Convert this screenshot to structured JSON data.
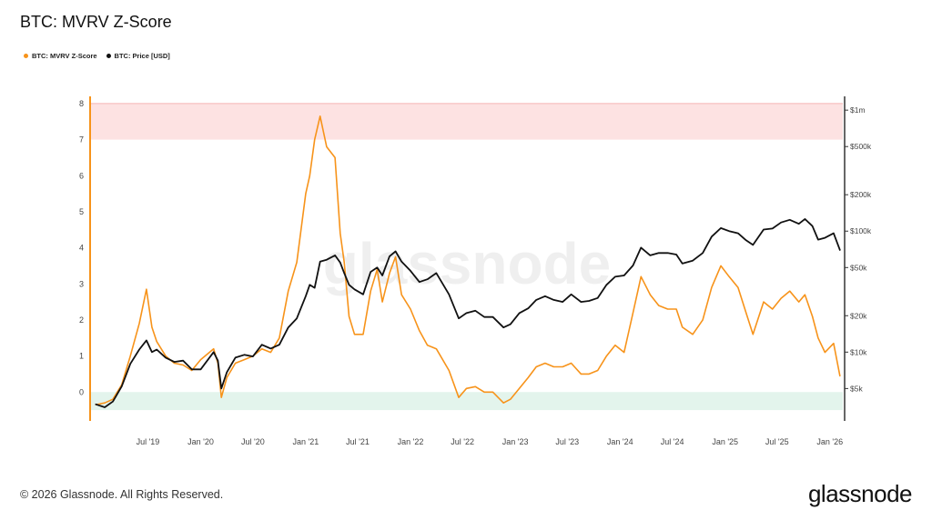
{
  "title": "BTC: MVRV Z-Score",
  "legend": [
    {
      "label": "BTC: MVRV Z-Score",
      "color": "#f7931a"
    },
    {
      "label": "BTC: Price [USD]",
      "color": "#111111"
    }
  ],
  "watermark": "glassnode",
  "footer": "© 2026 Glassnode. All Rights Reserved.",
  "brand": "glassnode",
  "colors": {
    "zscore": "#f7931a",
    "price": "#111111",
    "red_band": "#fde2e2",
    "green_band": "#e3f4ec"
  },
  "chart_data": {
    "type": "line",
    "x_axis": {
      "type": "date",
      "tick_labels": [
        "Jul '19",
        "Jan '20",
        "Jul '20",
        "Jan '21",
        "Jul '21",
        "Jan '22",
        "Jul '22",
        "Jan '23",
        "Jul '23",
        "Jan '24",
        "Jul '24",
        "Jan '25",
        "Jul '25",
        "Jan '26"
      ],
      "tick_dates": [
        "2019-07-01",
        "2020-01-01",
        "2020-07-01",
        "2021-01-01",
        "2021-07-01",
        "2022-01-01",
        "2022-07-01",
        "2023-01-01",
        "2023-07-01",
        "2024-01-01",
        "2024-07-01",
        "2025-01-01",
        "2025-07-01",
        "2026-01-01"
      ],
      "range": [
        "2018-12-15",
        "2026-02-15"
      ]
    },
    "y_left": {
      "range": [
        -0.8,
        8.2
      ],
      "tick_values": [
        0,
        1,
        2,
        3,
        4,
        5,
        6,
        7,
        8
      ],
      "tick_labels": [
        "0",
        "1",
        "2",
        "3",
        "4",
        "5",
        "6",
        "7",
        "8"
      ]
    },
    "y_right": {
      "scale": "log",
      "range": [
        2700,
        1300000
      ],
      "tick_values": [
        5000,
        10000,
        20000,
        50000,
        100000,
        200000,
        500000,
        1000000
      ],
      "tick_labels": [
        "$5k",
        "$10k",
        "$20k",
        "$50k",
        "$100k",
        "$200k",
        "$500k",
        "$1m"
      ]
    },
    "bands": [
      {
        "name": "overvalued",
        "axis": "left",
        "from": 7,
        "to": 8,
        "color": "#fde2e2"
      },
      {
        "name": "undervalued",
        "axis": "left",
        "from": -0.5,
        "to": 0,
        "color": "#e3f4ec"
      }
    ],
    "series": [
      {
        "name": "BTC: MVRV Z-Score",
        "axis": "left",
        "color": "#f7931a",
        "x": [
          "2019-01-01",
          "2019-02-01",
          "2019-03-01",
          "2019-04-01",
          "2019-05-01",
          "2019-06-01",
          "2019-06-26",
          "2019-07-15",
          "2019-08-01",
          "2019-09-01",
          "2019-10-01",
          "2019-11-01",
          "2019-12-01",
          "2020-01-01",
          "2020-02-15",
          "2020-03-01",
          "2020-03-13",
          "2020-04-01",
          "2020-05-01",
          "2020-06-01",
          "2020-07-01",
          "2020-08-01",
          "2020-09-01",
          "2020-10-01",
          "2020-11-01",
          "2020-12-01",
          "2021-01-01",
          "2021-01-15",
          "2021-02-01",
          "2021-02-20",
          "2021-03-15",
          "2021-04-13",
          "2021-05-01",
          "2021-05-15",
          "2021-06-01",
          "2021-06-20",
          "2021-07-20",
          "2021-08-15",
          "2021-09-07",
          "2021-09-25",
          "2021-10-20",
          "2021-11-10",
          "2021-12-01",
          "2022-01-01",
          "2022-02-01",
          "2022-03-01",
          "2022-04-01",
          "2022-05-15",
          "2022-06-18",
          "2022-07-15",
          "2022-08-15",
          "2022-09-15",
          "2022-10-15",
          "2022-11-21",
          "2022-12-15",
          "2023-01-15",
          "2023-02-15",
          "2023-03-15",
          "2023-04-15",
          "2023-05-15",
          "2023-06-15",
          "2023-07-15",
          "2023-08-18",
          "2023-09-15",
          "2023-10-15",
          "2023-11-15",
          "2023-12-15",
          "2024-01-15",
          "2024-02-15",
          "2024-03-14",
          "2024-04-15",
          "2024-05-15",
          "2024-06-15",
          "2024-07-15",
          "2024-08-05",
          "2024-09-10",
          "2024-10-15",
          "2024-11-15",
          "2024-12-17",
          "2025-01-15",
          "2025-02-15",
          "2025-03-15",
          "2025-04-08",
          "2025-05-15",
          "2025-06-15",
          "2025-07-15",
          "2025-08-14",
          "2025-09-15",
          "2025-10-06",
          "2025-11-01",
          "2025-11-21",
          "2025-12-15",
          "2026-01-14",
          "2026-02-05"
        ],
        "y": [
          -0.35,
          -0.3,
          -0.2,
          0.2,
          1.0,
          1.9,
          2.85,
          1.8,
          1.4,
          1.0,
          0.8,
          0.75,
          0.6,
          0.9,
          1.2,
          0.8,
          -0.15,
          0.4,
          0.8,
          0.9,
          1.0,
          1.2,
          1.1,
          1.5,
          2.8,
          3.6,
          5.5,
          6.0,
          7.0,
          7.65,
          6.8,
          6.5,
          4.4,
          3.6,
          2.1,
          1.6,
          1.6,
          2.8,
          3.4,
          2.5,
          3.3,
          3.75,
          2.7,
          2.3,
          1.7,
          1.3,
          1.2,
          0.6,
          -0.15,
          0.1,
          0.15,
          0.0,
          0.0,
          -0.3,
          -0.2,
          0.1,
          0.4,
          0.7,
          0.8,
          0.7,
          0.7,
          0.8,
          0.5,
          0.5,
          0.6,
          1.0,
          1.3,
          1.1,
          2.2,
          3.2,
          2.7,
          2.4,
          2.3,
          2.3,
          1.8,
          1.6,
          2.0,
          2.9,
          3.5,
          3.2,
          2.9,
          2.2,
          1.6,
          2.5,
          2.3,
          2.6,
          2.8,
          2.5,
          2.7,
          2.1,
          1.5,
          1.1,
          1.35,
          0.45
        ]
      },
      {
        "name": "BTC: Price [USD]",
        "axis": "right",
        "color": "#111111",
        "x": [
          "2019-01-01",
          "2019-02-01",
          "2019-03-01",
          "2019-04-01",
          "2019-05-01",
          "2019-06-01",
          "2019-06-26",
          "2019-07-15",
          "2019-08-01",
          "2019-09-01",
          "2019-10-01",
          "2019-11-01",
          "2019-12-01",
          "2020-01-01",
          "2020-02-15",
          "2020-03-01",
          "2020-03-13",
          "2020-04-01",
          "2020-05-01",
          "2020-06-01",
          "2020-07-01",
          "2020-08-01",
          "2020-09-01",
          "2020-10-01",
          "2020-11-01",
          "2020-12-01",
          "2021-01-01",
          "2021-01-15",
          "2021-02-01",
          "2021-02-20",
          "2021-03-15",
          "2021-04-13",
          "2021-05-01",
          "2021-05-15",
          "2021-06-01",
          "2021-06-20",
          "2021-07-20",
          "2021-08-15",
          "2021-09-07",
          "2021-09-25",
          "2021-10-20",
          "2021-11-10",
          "2021-12-01",
          "2022-01-01",
          "2022-02-01",
          "2022-03-01",
          "2022-04-01",
          "2022-05-15",
          "2022-06-18",
          "2022-07-15",
          "2022-08-15",
          "2022-09-15",
          "2022-10-15",
          "2022-11-21",
          "2022-12-15",
          "2023-01-15",
          "2023-02-15",
          "2023-03-15",
          "2023-04-15",
          "2023-05-15",
          "2023-06-15",
          "2023-07-15",
          "2023-08-18",
          "2023-09-15",
          "2023-10-15",
          "2023-11-15",
          "2023-12-15",
          "2024-01-15",
          "2024-02-15",
          "2024-03-14",
          "2024-04-15",
          "2024-05-15",
          "2024-06-15",
          "2024-07-15",
          "2024-08-05",
          "2024-09-10",
          "2024-10-15",
          "2024-11-15",
          "2024-12-17",
          "2025-01-15",
          "2025-02-15",
          "2025-03-15",
          "2025-04-08",
          "2025-05-15",
          "2025-06-15",
          "2025-07-15",
          "2025-08-14",
          "2025-09-15",
          "2025-10-06",
          "2025-11-01",
          "2025-11-21",
          "2025-12-15",
          "2026-01-14",
          "2026-02-05"
        ],
        "y": [
          3700,
          3500,
          3900,
          5200,
          8000,
          10500,
          12500,
          10000,
          10500,
          9000,
          8300,
          8500,
          7200,
          7200,
          10000,
          8500,
          5000,
          6800,
          9000,
          9500,
          9200,
          11500,
          10700,
          11500,
          16000,
          19000,
          29000,
          36000,
          34000,
          56000,
          58000,
          63000,
          55000,
          45000,
          36000,
          33000,
          30000,
          46000,
          50000,
          43000,
          62000,
          68000,
          56000,
          47000,
          38000,
          40000,
          45000,
          30000,
          19000,
          21000,
          22000,
          19500,
          19500,
          16000,
          17000,
          21000,
          23000,
          27000,
          29000,
          27000,
          26000,
          30000,
          26000,
          26500,
          28000,
          36000,
          42000,
          43000,
          52000,
          73000,
          63000,
          66000,
          66000,
          64000,
          54000,
          57000,
          66000,
          90000,
          106000,
          100000,
          96000,
          84000,
          77000,
          103000,
          105000,
          118000,
          124000,
          115000,
          126000,
          110000,
          85000,
          88000,
          96000,
          70000
        ]
      }
    ]
  }
}
